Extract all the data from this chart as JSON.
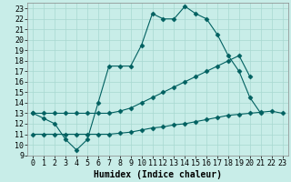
{
  "title": "",
  "xlabel": "Humidex (Indice chaleur)",
  "bg_color": "#c8ede8",
  "line_color": "#006060",
  "grid_color": "#a8d8d0",
  "xlim": [
    -0.5,
    23.5
  ],
  "ylim": [
    9,
    23.5
  ],
  "xticks": [
    0,
    1,
    2,
    3,
    4,
    5,
    6,
    7,
    8,
    9,
    10,
    11,
    12,
    13,
    14,
    15,
    16,
    17,
    18,
    19,
    20,
    21,
    22,
    23
  ],
  "yticks": [
    9,
    10,
    11,
    12,
    13,
    14,
    15,
    16,
    17,
    18,
    19,
    20,
    21,
    22,
    23
  ],
  "line1_x": [
    0,
    1,
    2,
    3,
    4,
    5,
    6,
    7,
    8,
    9,
    10,
    11,
    12,
    13,
    14,
    15,
    16,
    17,
    18,
    19,
    20,
    21
  ],
  "line1_y": [
    13,
    12.5,
    12,
    10.5,
    9.5,
    10.5,
    14,
    17.5,
    17.5,
    17.5,
    19.5,
    22.5,
    22.0,
    22.0,
    23.2,
    22.5,
    22.0,
    20.5,
    18.5,
    17.0,
    14.5,
    13.0
  ],
  "line2_x": [
    0,
    1,
    2,
    3,
    4,
    5,
    6,
    7,
    8,
    9,
    10,
    11,
    12,
    13,
    14,
    15,
    16,
    17,
    18,
    19,
    20
  ],
  "line2_y": [
    13,
    13,
    13,
    13,
    13,
    13,
    13,
    13,
    13.2,
    13.5,
    14.0,
    14.5,
    15.0,
    15.5,
    16.0,
    16.5,
    17.0,
    17.5,
    18.0,
    18.5,
    16.5
  ],
  "line3_x": [
    0,
    1,
    2,
    3,
    4,
    5,
    6,
    7,
    8,
    9,
    10,
    11,
    12,
    13,
    14,
    15,
    16,
    17,
    18,
    19,
    20,
    21,
    22,
    23
  ],
  "line3_y": [
    11,
    11,
    11,
    11,
    11,
    11,
    11,
    11,
    11.1,
    11.2,
    11.4,
    11.6,
    11.7,
    11.9,
    12.0,
    12.2,
    12.4,
    12.6,
    12.8,
    12.9,
    13.0,
    13.1,
    13.2,
    13.0
  ],
  "font_size": 6,
  "label_fontsize": 7
}
